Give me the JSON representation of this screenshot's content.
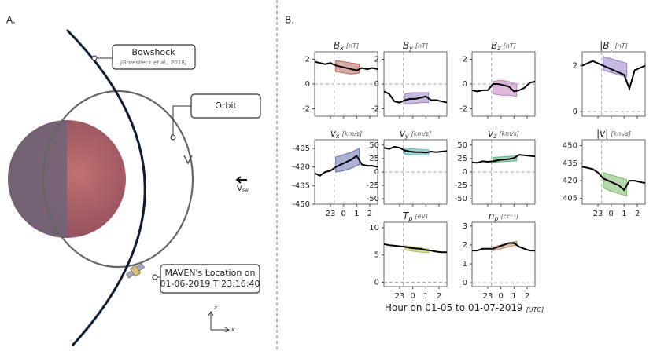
{
  "panel_a": {
    "label": "A.",
    "bowshock": "Bowshock",
    "bowshock_ref": "[Gruesbeck et al., 2018]",
    "orbit": "Orbit",
    "vsw": "V",
    "vsw_sub": "sw",
    "maven_line1": "MAVEN's Location on",
    "maven_line2": "01-06-2019 T 23:16:40",
    "axis_z": "z",
    "axis_x": "x"
  },
  "plots": {
    "label": "B.",
    "xlabel": "Hour on 01-05 to 01-07-2019",
    "xlabel_unit": "[UTC]",
    "xlim": [
      -2.2,
      2.6
    ],
    "xticks": [
      {
        "value": -1,
        "label": "23"
      },
      0,
      1,
      2
    ],
    "vline": -0.72,
    "trace_x": [
      -2.2,
      -1.8,
      -1.4,
      -1.0,
      -0.6,
      -0.2,
      0.2,
      0.6,
      1.0,
      1.4,
      1.8,
      2.2,
      2.6
    ],
    "band_x": [
      -0.6,
      0.0,
      0.6,
      1.2
    ],
    "panels": [
      {
        "symbol": "B",
        "sub": "x",
        "unit": "[nT]",
        "ylim": [
          -2.6,
          2.6
        ],
        "yticks": [
          -2,
          0,
          2
        ],
        "hline": 0,
        "color": "#b5655a",
        "trace": [
          1.8,
          1.7,
          1.6,
          1.7,
          1.5,
          1.4,
          1.3,
          1.2,
          1.1,
          1.3,
          1.2,
          1.3,
          1.2
        ],
        "upper": [
          1.9,
          1.8,
          1.7,
          1.6
        ],
        "lower": [
          1.0,
          0.9,
          0.8,
          0.9
        ],
        "show_xtick_labels": false
      },
      {
        "symbol": "B",
        "sub": "y",
        "unit": "[nT]",
        "ylim": [
          -2.6,
          2.6
        ],
        "yticks": [
          -2,
          0,
          2
        ],
        "hline": 0,
        "color": "#9c7fbf",
        "trace": [
          -0.6,
          -0.8,
          -1.4,
          -1.5,
          -1.3,
          -1.2,
          -1.2,
          -1.1,
          -1.0,
          -1.3,
          -1.3,
          -1.4,
          -1.5
        ],
        "upper": [
          -0.8,
          -0.7,
          -0.7,
          -0.7
        ],
        "lower": [
          -1.6,
          -1.6,
          -1.5,
          -1.5
        ],
        "show_xtick_labels": false
      },
      {
        "symbol": "B",
        "sub": "z",
        "unit": "[nT]",
        "ylim": [
          -2.6,
          2.6
        ],
        "yticks": [
          -2,
          0,
          2
        ],
        "hline": 0,
        "color": "#c27fbf",
        "trace": [
          -0.5,
          -0.6,
          -0.5,
          -0.5,
          0.0,
          0.0,
          -0.1,
          -0.2,
          -0.6,
          -0.5,
          -0.3,
          0.1,
          0.2
        ],
        "upper": [
          0.2,
          0.3,
          0.2,
          0.0
        ],
        "lower": [
          -0.8,
          -0.9,
          -0.9,
          -1.0
        ],
        "show_xtick_labels": false
      },
      {
        "symbol": "|B|",
        "sub": "",
        "unit": "[nT]",
        "ylim": [
          -0.2,
          2.6
        ],
        "yticks": [
          0,
          2
        ],
        "hline": 0,
        "color": "#9a7fc9",
        "trace": [
          2.0,
          2.1,
          2.2,
          2.1,
          2.0,
          1.9,
          1.8,
          1.7,
          1.6,
          1.0,
          1.8,
          1.9,
          2.0
        ],
        "upper": [
          2.4,
          2.3,
          2.2,
          2.1
        ],
        "lower": [
          1.8,
          1.7,
          1.6,
          1.5
        ],
        "show_xtick_labels": false
      },
      {
        "symbol": "v",
        "sub": "x",
        "unit": "[km/s]",
        "ylim": [
          -450,
          -398
        ],
        "yticks": [
          -405,
          -420,
          -435,
          -450
        ],
        "hline": null,
        "color": "#6670b0",
        "trace": [
          -425,
          -427,
          -424,
          -423,
          -420,
          -418,
          -416,
          -414,
          -411,
          -418,
          -419,
          -419,
          -420
        ],
        "upper": [
          -412,
          -410,
          -408,
          -405
        ],
        "lower": [
          -424,
          -423,
          -421,
          -418
        ],
        "show_xtick_labels": true
      },
      {
        "symbol": "v",
        "sub": "y",
        "unit": "[km/s]",
        "ylim": [
          -60,
          60
        ],
        "yticks": [
          50,
          25,
          0,
          -25,
          -50
        ],
        "hline": 0,
        "color": "#5ab5b5",
        "trace": [
          45,
          43,
          47,
          45,
          40,
          38,
          37,
          37,
          36,
          38,
          37,
          38,
          39
        ],
        "upper": [
          44,
          43,
          42,
          41
        ],
        "lower": [
          33,
          32,
          32,
          31
        ],
        "show_xtick_labels": false
      },
      {
        "symbol": "v",
        "sub": "z",
        "unit": "[km/s]",
        "ylim": [
          -60,
          60
        ],
        "yticks": [
          50,
          25,
          0,
          -25,
          -50
        ],
        "hline": 0,
        "color": "#5ab580",
        "trace": [
          18,
          17,
          20,
          19,
          20,
          22,
          23,
          24,
          26,
          32,
          31,
          30,
          29
        ],
        "upper": [
          27,
          28,
          29,
          30
        ],
        "lower": [
          18,
          19,
          20,
          21
        ],
        "show_xtick_labels": false
      },
      {
        "symbol": "|v|",
        "sub": "",
        "unit": "[km/s]",
        "ylim": [
          400,
          455
        ],
        "yticks": [
          450,
          435,
          420,
          405
        ],
        "hline": null,
        "color": "#7ab86a",
        "trace": [
          432,
          431,
          430,
          427,
          422,
          420,
          418,
          416,
          412,
          420,
          420,
          419,
          418
        ],
        "upper": [
          427,
          425,
          423,
          421
        ],
        "lower": [
          414,
          411,
          409,
          407
        ],
        "show_xtick_labels": true
      },
      {
        "symbol": "T",
        "sub": "p",
        "unit": "[eV]",
        "ylim": [
          -0.8,
          11
        ],
        "yticks": [
          0,
          5,
          10
        ],
        "hline": 0,
        "color": "#b5c060",
        "trace": [
          7.0,
          6.8,
          6.7,
          6.6,
          6.5,
          6.3,
          6.2,
          6.1,
          5.9,
          5.8,
          5.6,
          5.5,
          5.5
        ],
        "upper": [
          6.7,
          6.5,
          6.3,
          6.1
        ],
        "lower": [
          5.9,
          5.7,
          5.5,
          5.4
        ],
        "show_xtick_labels": true
      },
      {
        "symbol": "n",
        "sub": "p",
        "unit": "[cc⁻¹]",
        "ylim": [
          -0.2,
          3.2
        ],
        "yticks": [
          0,
          1,
          2,
          3
        ],
        "hline": 0,
        "color": "#c08c60",
        "trace": [
          1.7,
          1.7,
          1.8,
          1.8,
          1.8,
          1.9,
          2.0,
          2.1,
          2.1,
          1.9,
          1.8,
          1.7,
          1.7
        ],
        "upper": [
          1.9,
          2.0,
          2.1,
          2.2
        ],
        "lower": [
          1.7,
          1.8,
          1.9,
          2.0
        ],
        "show_xtick_labels": true
      }
    ]
  }
}
